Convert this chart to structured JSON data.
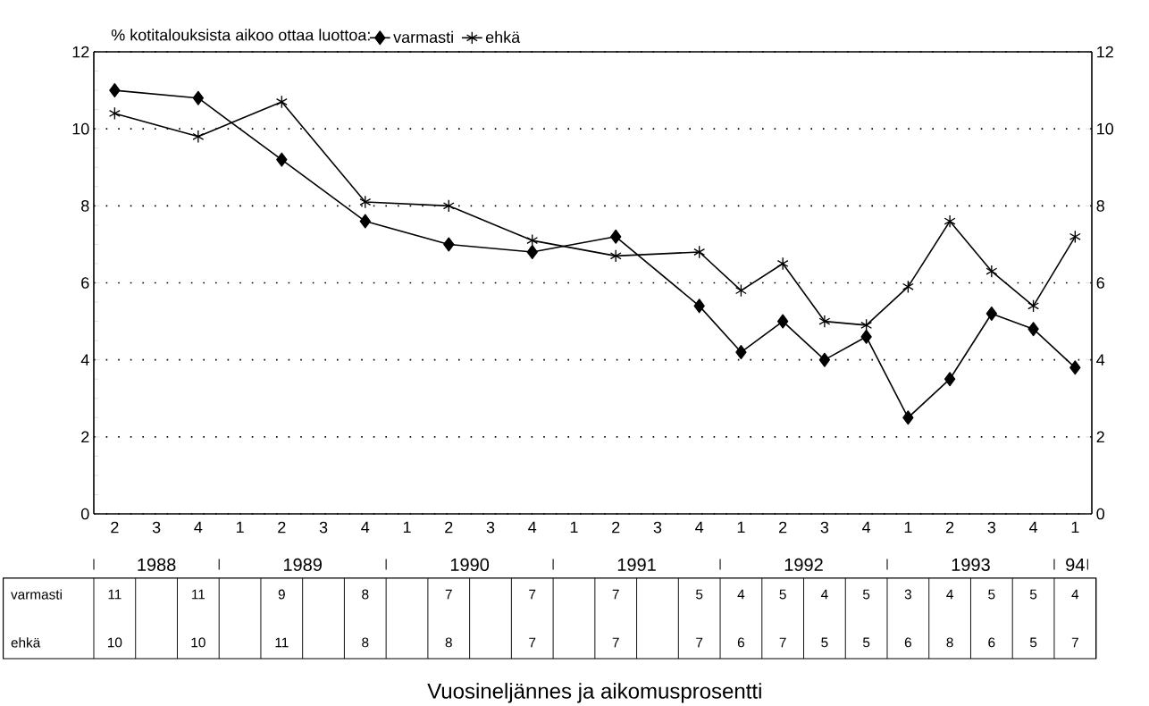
{
  "chart_data": {
    "type": "line",
    "title": "% kotitalouksista aikoo ottaa luottoa:",
    "categories": [
      "2",
      "3",
      "4",
      "1",
      "2",
      "3",
      "4",
      "1",
      "2",
      "3",
      "4",
      "1",
      "2",
      "3",
      "4",
      "1",
      "2",
      "3",
      "4",
      "1",
      "2",
      "3",
      "4",
      "1"
    ],
    "annotations": [
      "1988",
      "1989",
      "1990",
      "1991",
      "1992",
      "1993",
      "94",
      "Vuosineljännes ja aikomusprosentti"
    ],
    "series": [
      {
        "name": "varmasti",
        "color": "#000000",
        "marker": "diamond",
        "values": [
          11.0,
          null,
          10.8,
          null,
          9.2,
          null,
          7.6,
          null,
          7.0,
          null,
          6.8,
          null,
          7.2,
          null,
          5.4,
          4.2,
          5.0,
          4.0,
          4.6,
          2.5,
          3.5,
          5.2,
          4.8,
          3.8
        ],
        "value_labels": [
          "11",
          null,
          "11",
          null,
          "9",
          null,
          "8",
          null,
          "7",
          null,
          "7",
          null,
          "7",
          null,
          "5",
          "4",
          "5",
          "4",
          "5",
          "3",
          "4",
          "5",
          "5",
          "4"
        ]
      },
      {
        "name": "ehkä",
        "color": "#000000",
        "marker": "cross",
        "values": [
          10.4,
          null,
          9.8,
          null,
          10.7,
          null,
          8.1,
          null,
          8.0,
          null,
          7.1,
          null,
          6.7,
          null,
          6.8,
          5.8,
          6.5,
          5.0,
          4.9,
          5.9,
          7.6,
          6.3,
          5.4,
          7.2
        ],
        "value_labels": [
          "10",
          null,
          "10",
          null,
          "11",
          null,
          "8",
          null,
          "8",
          null,
          "7",
          null,
          "7",
          null,
          "7",
          "6",
          "7",
          "5",
          "5",
          "6",
          "8",
          "6",
          "5",
          "7"
        ]
      }
    ],
    "ylim": [
      0,
      12
    ],
    "yticks": [
      0,
      2,
      4,
      6,
      8,
      10,
      12
    ],
    "y2lim": [
      0,
      12
    ],
    "y2ticks": [
      0,
      2,
      4,
      6,
      8,
      10,
      12
    ],
    "grid": "y",
    "legend": "top",
    "line_style": "solid"
  }
}
